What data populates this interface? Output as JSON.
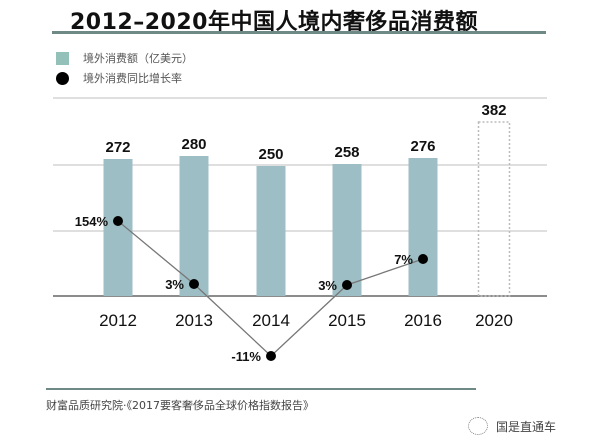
{
  "title": "2012–2020年中国人境内奢侈品消费额",
  "legend": {
    "bar_label": "境外消费额（亿美元）",
    "dot_label": "境外消费同比增长率"
  },
  "source": "财富品质研究院·《2017要客奢侈品全球价格指数报告》",
  "watermark": "国是直通车",
  "colors": {
    "bar": "#9dbec4",
    "legend_bar": "#93c0b8",
    "line": "#777777",
    "dot": "#000000",
    "rule": "#6f8a86",
    "grid": "#cccccc"
  },
  "chart_data": {
    "type": "bar",
    "title": "2012–2020年中国人境内奢侈品消费额",
    "categories": [
      "2012",
      "2013",
      "2014",
      "2015",
      "2016",
      "2020"
    ],
    "series": [
      {
        "name": "境外消费额（亿美元）",
        "type": "bar",
        "values": [
          272,
          280,
          250,
          258,
          276,
          382
        ],
        "labels": [
          "272",
          "280",
          "250",
          "258",
          "276",
          "382"
        ],
        "projected": [
          false,
          false,
          false,
          false,
          false,
          true
        ]
      },
      {
        "name": "境外消费同比增长率",
        "type": "line",
        "values": [
          154,
          3,
          -11,
          3,
          7,
          null
        ],
        "labels": [
          "154%",
          "3%",
          "-11%",
          "3%",
          "7%",
          ""
        ]
      }
    ],
    "xlabel": "",
    "ylabel": "",
    "grid": true,
    "legend_position": "top-left"
  }
}
